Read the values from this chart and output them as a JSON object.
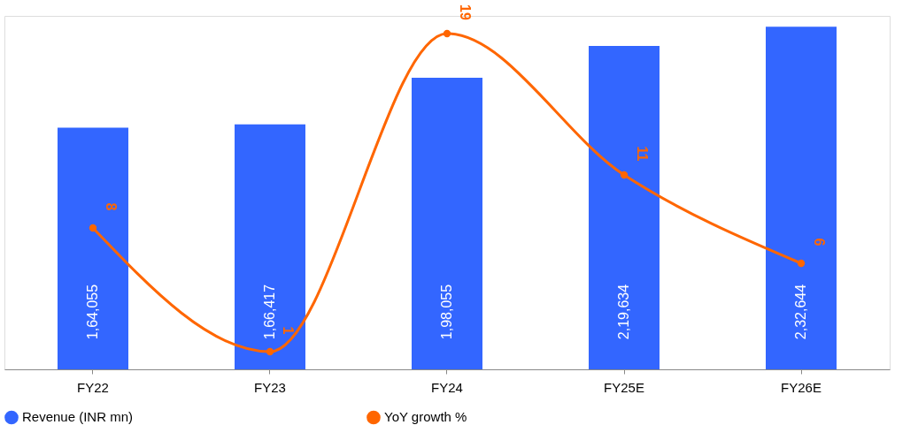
{
  "chart_data": {
    "type": "bar",
    "categories": [
      "FY22",
      "FY23",
      "FY24",
      "FY25E",
      "FY26E"
    ],
    "legend": "bottom",
    "grid": false,
    "data_labels": true,
    "series": [
      {
        "name": "Revenue (INR mn)",
        "color": "#3366ff",
        "values": [
          164055,
          166417,
          198055,
          219634,
          232644
        ],
        "value_labels": [
          "1,64,055",
          "1,66,417",
          "1,98,055",
          "2,19,634",
          "2,32,644"
        ]
      },
      {
        "name": "YoY growth %",
        "type": "line",
        "axis": "y2",
        "color": "#ff6600",
        "marker": "circle",
        "values": [
          8,
          1,
          19,
          11,
          6
        ],
        "value_labels": [
          "8",
          "1",
          "19",
          "11",
          "6"
        ]
      }
    ]
  }
}
